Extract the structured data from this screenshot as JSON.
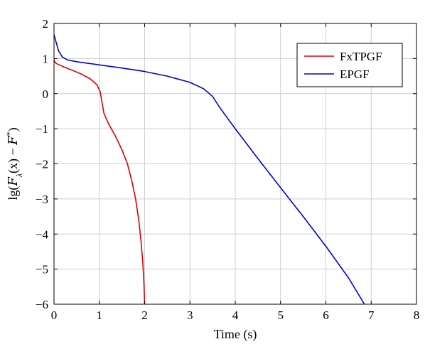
{
  "chart_data": {
    "type": "line",
    "title": "",
    "xlabel": "Time (s)",
    "ylabel_parts": [
      "lg(",
      "F",
      "λ",
      "(x) − ",
      "F",
      "*",
      ")"
    ],
    "xlim": [
      0,
      8
    ],
    "ylim": [
      -6,
      2
    ],
    "xticks": [
      "0",
      "1",
      "2",
      "3",
      "4",
      "5",
      "6",
      "7",
      "8"
    ],
    "yticks": [
      "2",
      "1",
      "0",
      "−1",
      "−2",
      "−3",
      "−4",
      "−5",
      "−6"
    ],
    "grid": true,
    "legend_position": "top-right",
    "series": [
      {
        "name": "FxTPGF",
        "color": "#e00000",
        "points": [
          [
            0,
            0.95
          ],
          [
            0.02,
            0.9
          ],
          [
            0.05,
            0.86
          ],
          [
            0.2,
            0.77
          ],
          [
            0.4,
            0.67
          ],
          [
            0.6,
            0.56
          ],
          [
            0.8,
            0.42
          ],
          [
            0.95,
            0.25
          ],
          [
            1.02,
            0.05
          ],
          [
            1.06,
            -0.25
          ],
          [
            1.1,
            -0.55
          ],
          [
            1.2,
            -0.85
          ],
          [
            1.35,
            -1.2
          ],
          [
            1.5,
            -1.6
          ],
          [
            1.62,
            -2.0
          ],
          [
            1.72,
            -2.5
          ],
          [
            1.8,
            -3.0
          ],
          [
            1.87,
            -3.6
          ],
          [
            1.92,
            -4.2
          ],
          [
            1.96,
            -4.8
          ],
          [
            1.985,
            -5.4
          ],
          [
            2.0,
            -6.0
          ]
        ]
      },
      {
        "name": "EPGF",
        "color": "#0000e0",
        "points": [
          [
            0,
            1.68
          ],
          [
            0.05,
            1.45
          ],
          [
            0.1,
            1.22
          ],
          [
            0.18,
            1.05
          ],
          [
            0.3,
            0.96
          ],
          [
            0.5,
            0.91
          ],
          [
            1.0,
            0.82
          ],
          [
            1.5,
            0.73
          ],
          [
            2.0,
            0.63
          ],
          [
            2.5,
            0.5
          ],
          [
            3.0,
            0.32
          ],
          [
            3.3,
            0.14
          ],
          [
            3.5,
            -0.08
          ],
          [
            3.65,
            -0.38
          ],
          [
            3.8,
            -0.65
          ],
          [
            4.0,
            -1.0
          ],
          [
            4.5,
            -1.85
          ],
          [
            5.0,
            -2.68
          ],
          [
            5.5,
            -3.5
          ],
          [
            6.0,
            -4.35
          ],
          [
            6.5,
            -5.25
          ],
          [
            6.85,
            -6.0
          ]
        ]
      }
    ]
  }
}
